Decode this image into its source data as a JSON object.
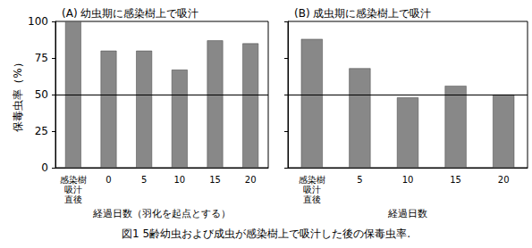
{
  "caption": "図1 5齢幼虫および成虫が感染樹上で吸汁した後の保毒虫率.",
  "chart_data": [
    {
      "type": "bar",
      "title": "(A) 幼虫期に感染樹上で吸汁",
      "xlabel": "経過日数（羽化を起点とする）",
      "ylabel": "保毒虫率（%）",
      "categories": [
        "感染樹\n吸汁\n直後",
        "0",
        "5",
        "10",
        "15",
        "20"
      ],
      "values": [
        100,
        80,
        80,
        67,
        87,
        85
      ],
      "color": "#888888",
      "hline": 50,
      "ylim": [
        0,
        100
      ],
      "yticks": [
        0,
        25,
        50,
        75,
        100
      ]
    },
    {
      "type": "bar",
      "title": "(B) 成虫期に感染樹上で吸汁",
      "xlabel": "経過日数",
      "categories": [
        "感染樹\n吸汁\n直後",
        "5",
        "10",
        "15",
        "20"
      ],
      "values": [
        88,
        68,
        48,
        56,
        50
      ],
      "color": "#888888",
      "hline": 50,
      "ylim": [
        0,
        100
      ],
      "yticks": [
        0,
        25,
        50,
        75,
        100
      ],
      "tick_labels": "x"
    }
  ]
}
